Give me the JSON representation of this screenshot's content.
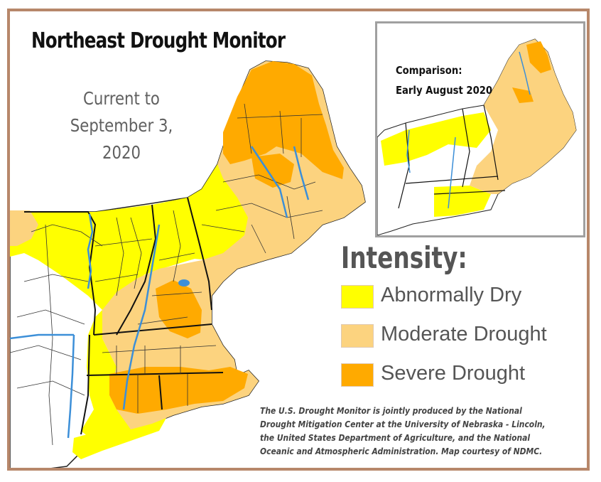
{
  "title": "Northeast Drought Monitor",
  "subtitle": {
    "line1": "Current to",
    "line2": "September 3, 2020"
  },
  "inset": {
    "line1": "Comparison:",
    "line2": "Early August 2020"
  },
  "legend": {
    "title": "Intensity:",
    "items": [
      {
        "label": "Abnormally Dry",
        "color": "#ffff00"
      },
      {
        "label": "Moderate Drought",
        "color": "#fcd37f"
      },
      {
        "label": "Severe Drought",
        "color": "#ffaa00"
      }
    ]
  },
  "credit": "The U.S. Drought Monitor is jointly produced by the National Drought Mitigation Center at the University of Nebraska - Lincoln, the United States Department of Agriculture, and the National Oceanic and Atmospheric Administration.  Map courtesy of NDMC.",
  "colors": {
    "frame": "#b7876a",
    "water": "#3c8fd8",
    "boundary": "#222222"
  }
}
